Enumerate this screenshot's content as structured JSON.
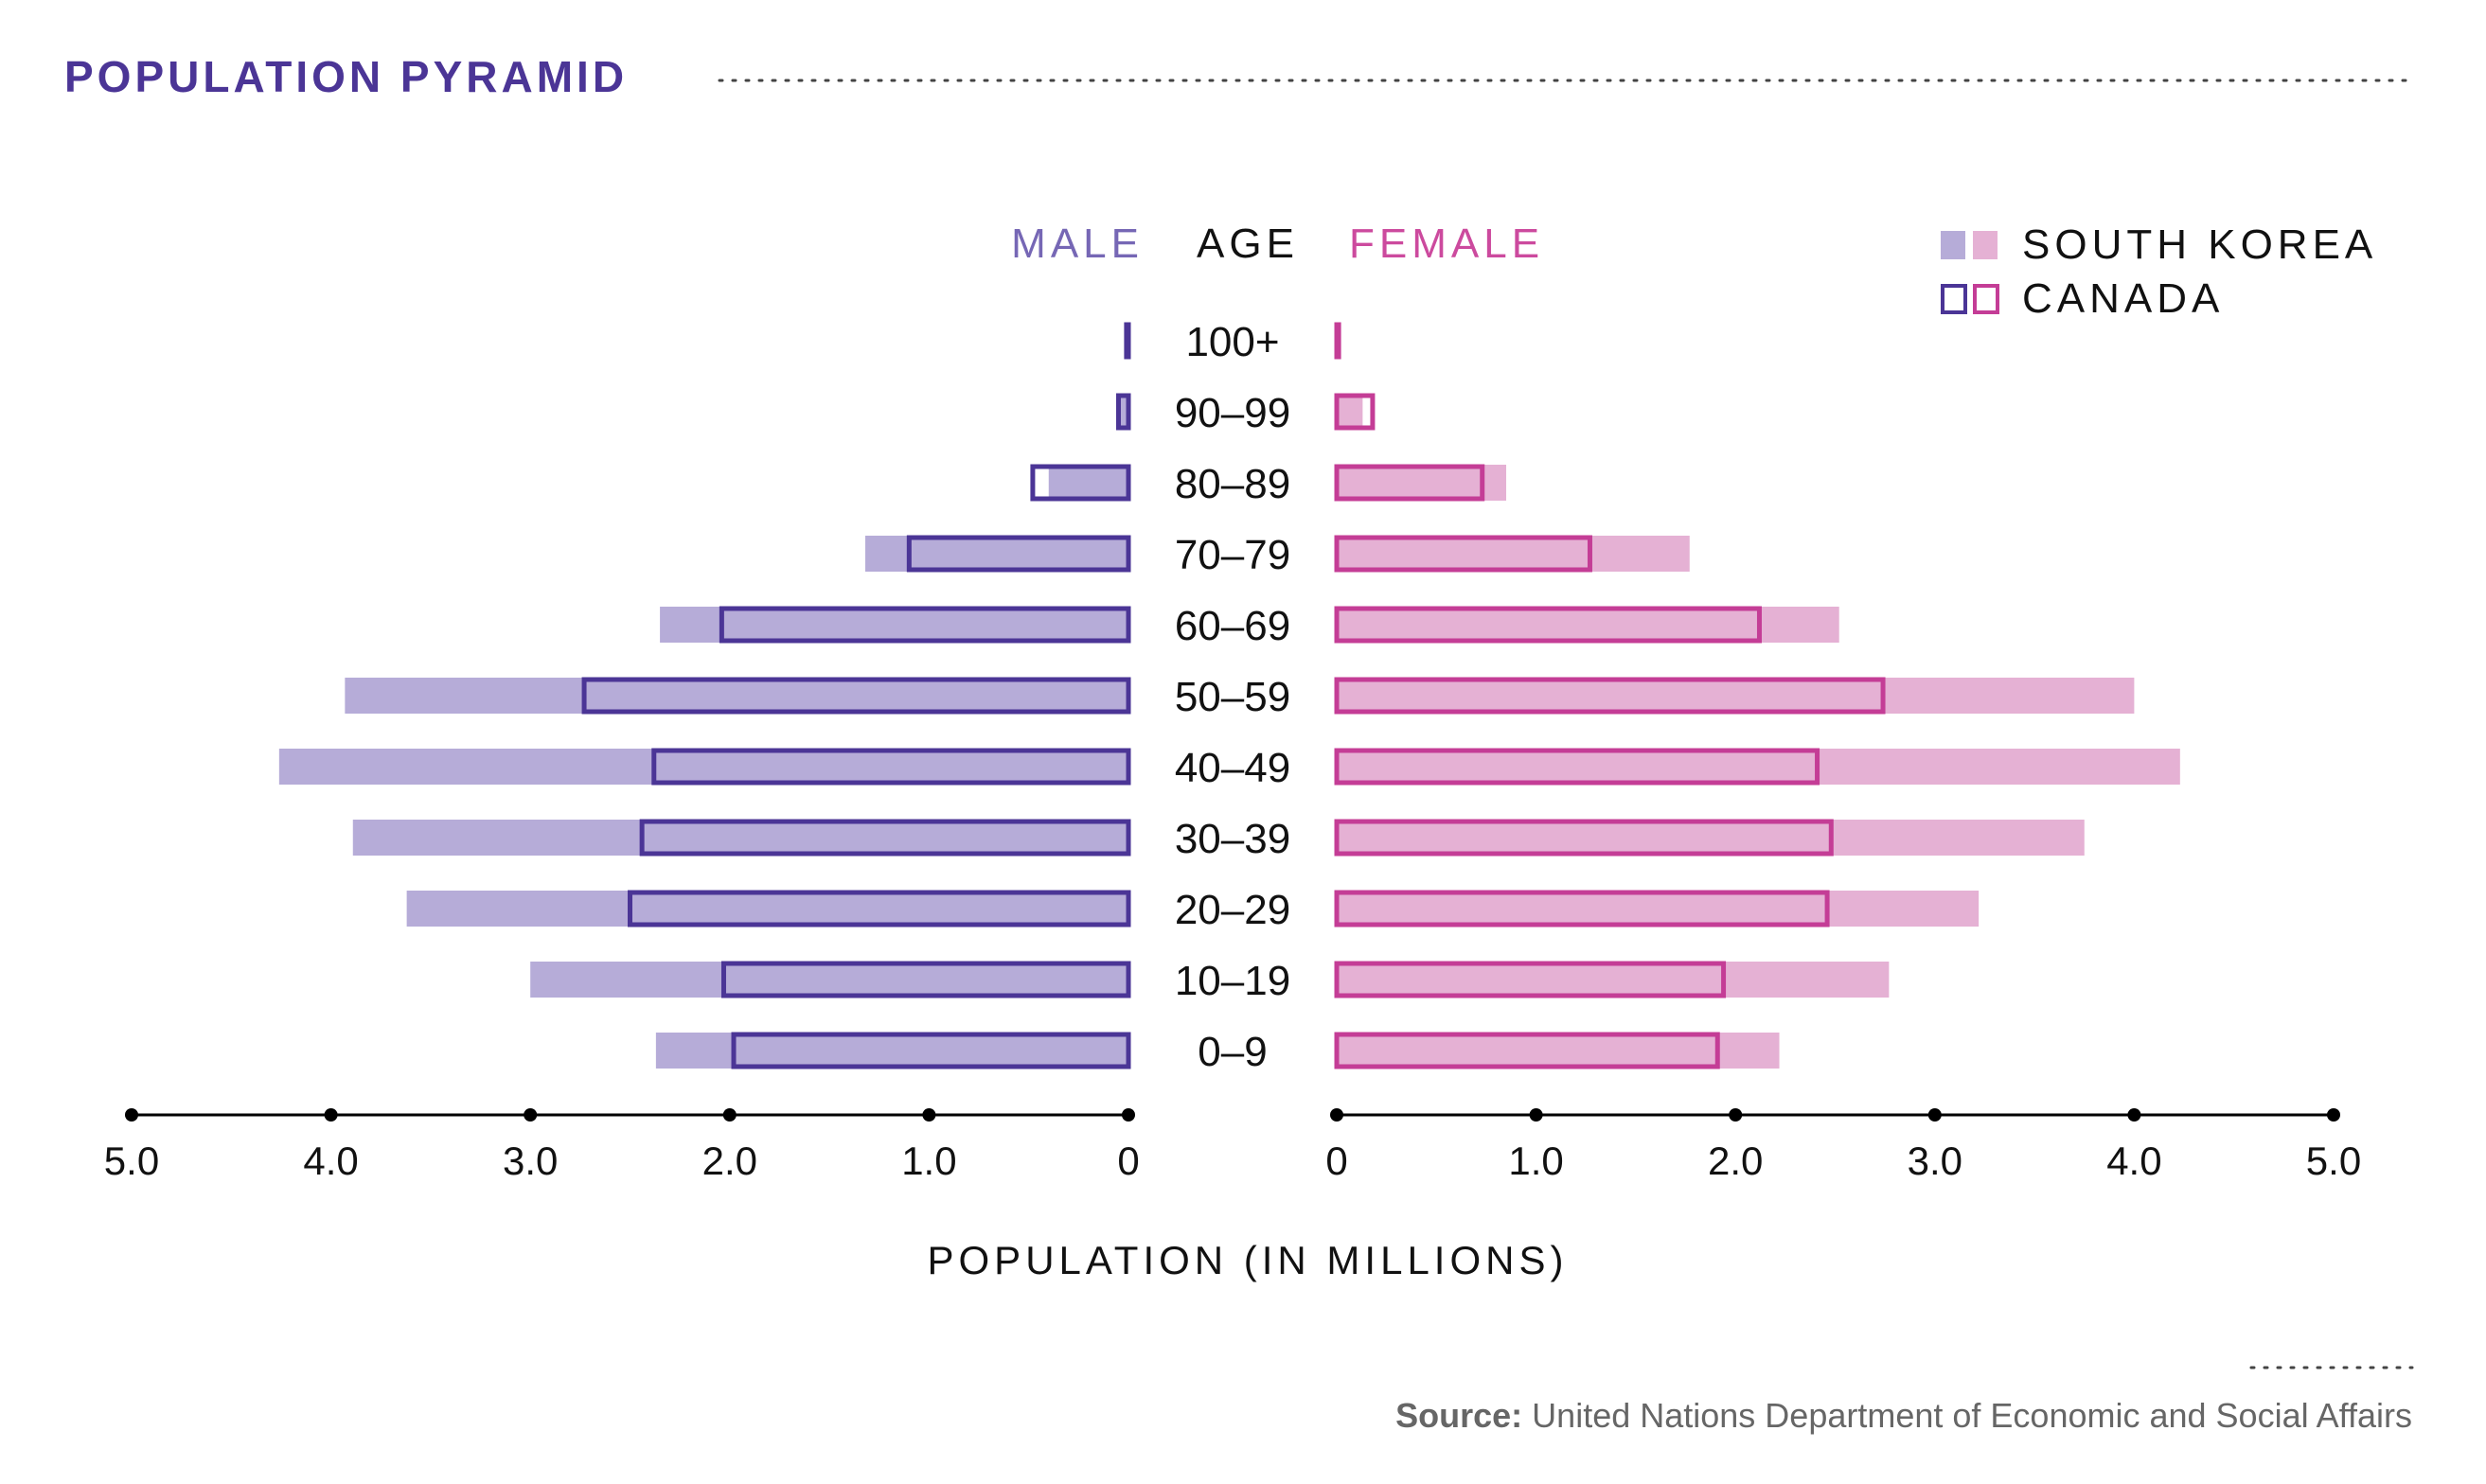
{
  "title": "POPULATION PYRAMID",
  "colors": {
    "title": "#4b3596",
    "male_dark": "#4b3596",
    "male_light": "#b6acd8",
    "male_header": "#7667b5",
    "female_dark": "#c43d96",
    "female_light": "#e5b1d4",
    "female_header": "#cc4a9e",
    "axis": "#000000",
    "dots": "#444444",
    "source": "#666666"
  },
  "headers": {
    "male": "MALE",
    "age": "AGE",
    "female": "FEMALE"
  },
  "legend": [
    {
      "label": "SOUTH KOREA",
      "style": "filled"
    },
    {
      "label": "CANADA",
      "style": "outline"
    }
  ],
  "source": {
    "bold": "Source:",
    "text": " United Nations Department of Economic and Social Affairs"
  },
  "chart_data": {
    "type": "bar",
    "orientation": "horizontal-pyramid",
    "xlabel": "POPULATION (IN MILLIONS)",
    "xlim": [
      0,
      5
    ],
    "male_ticks": [
      "5.0",
      "4.0",
      "3.0",
      "2.0",
      "1.0",
      "0"
    ],
    "female_ticks": [
      "0",
      "1.0",
      "2.0",
      "3.0",
      "4.0",
      "5.0"
    ],
    "categories": [
      "100+",
      "90–99",
      "80–89",
      "70–79",
      "60–69",
      "50–59",
      "40–49",
      "30–39",
      "20–29",
      "10–19",
      "0–9"
    ],
    "series": [
      {
        "name": "SOUTH KOREA",
        "side": "male",
        "style": "filled",
        "values": [
          0.005,
          0.04,
          0.4,
          1.32,
          2.35,
          3.93,
          4.26,
          3.89,
          3.62,
          3.0,
          2.37
        ]
      },
      {
        "name": "CANADA",
        "side": "male",
        "style": "outline",
        "values": [
          0.01,
          0.05,
          0.48,
          1.1,
          2.04,
          2.73,
          2.38,
          2.44,
          2.5,
          2.03,
          1.98
        ]
      },
      {
        "name": "SOUTH KOREA",
        "side": "female",
        "style": "filled",
        "values": [
          0.01,
          0.13,
          0.85,
          1.77,
          2.52,
          4.0,
          4.23,
          3.75,
          3.22,
          2.77,
          2.22
        ]
      },
      {
        "name": "CANADA",
        "side": "female",
        "style": "outline",
        "values": [
          0.01,
          0.18,
          0.73,
          1.27,
          2.12,
          2.74,
          2.41,
          2.48,
          2.46,
          1.94,
          1.91
        ]
      }
    ]
  }
}
